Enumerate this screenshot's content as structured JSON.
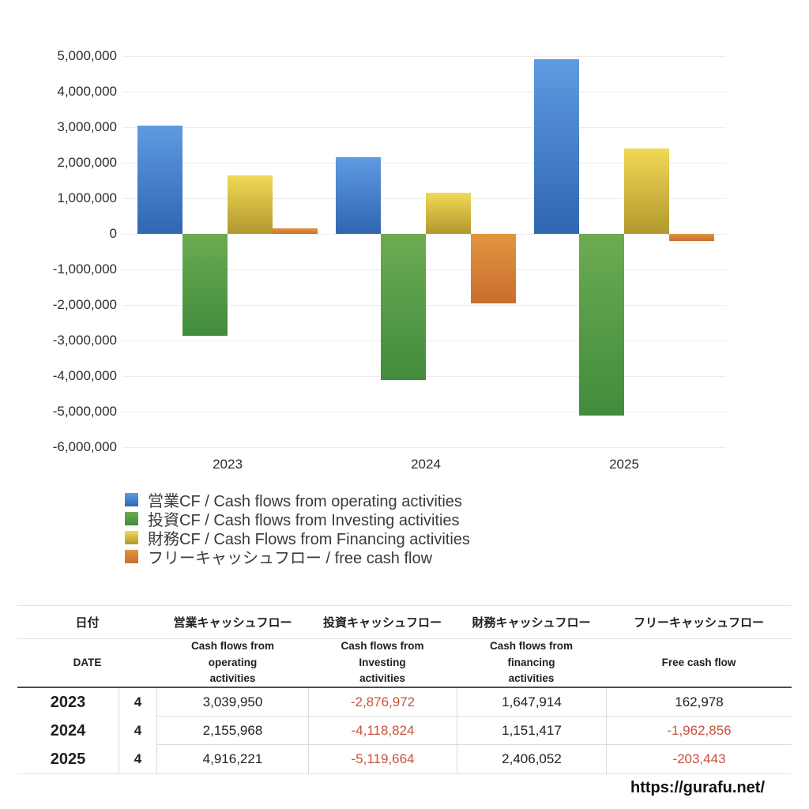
{
  "chart_data": {
    "type": "bar",
    "categories": [
      "2023",
      "2024",
      "2025"
    ],
    "series": [
      {
        "name": "営業CF / Cash flows from operating activities",
        "values": [
          3039950,
          2155968,
          4916221
        ],
        "color_top": "#5f9ae2",
        "color_bottom": "#3066b2"
      },
      {
        "name": "投資CF / Cash flows from Investing activities",
        "values": [
          -2876972,
          -4118824,
          -5119664
        ],
        "color_top": "#6cab52",
        "color_bottom": "#418c3c"
      },
      {
        "name": "財務CF / Cash Flows from Financing activities",
        "values": [
          1647914,
          1151417,
          2406052
        ],
        "color_top": "#f0d955",
        "color_bottom": "#b2982f"
      },
      {
        "name": "フリーキャッシュフロー / free cash flow",
        "values": [
          162978,
          -1962856,
          -203443
        ],
        "color_top": "#e2953f",
        "color_bottom": "#c96e2f"
      }
    ],
    "title": "",
    "xlabel": "",
    "ylabel": "",
    "ylim": [
      -6000000,
      5000000
    ],
    "ytick_step": 1000000,
    "ytick_labels": [
      "5,000,000",
      "4,000,000",
      "3,000,000",
      "2,000,000",
      "1,000,000",
      "0",
      "-1,000,000",
      "-2,000,000",
      "-3,000,000",
      "-4,000,000",
      "-5,000,000",
      "-6,000,000"
    ],
    "grid": true,
    "legend_position": "bottom-left"
  },
  "table": {
    "headers_ja": [
      "日付",
      "営業キャッシュフロー",
      "投資キャッシュフロー",
      "財務キャッシュフロー",
      "フリーキャッシュフロー"
    ],
    "headers_en": [
      "DATE",
      "Cash flows from operating activities",
      "Cash flows from Investing activities",
      "Cash flows from financing activities",
      "Free cash flow"
    ],
    "rows": [
      {
        "year": "2023",
        "month": "4",
        "values": [
          "3,039,950",
          "-2,876,972",
          "1,647,914",
          "162,978"
        ]
      },
      {
        "year": "2024",
        "month": "4",
        "values": [
          "2,155,968",
          "-4,118,824",
          "1,151,417",
          "-1,962,856"
        ]
      },
      {
        "year": "2025",
        "month": "4",
        "values": [
          "4,916,221",
          "-5,119,664",
          "2,406,052",
          "-203,443"
        ]
      }
    ],
    "negative_color": "#c9513e"
  },
  "footer": {
    "url": "https://gurafu.net/"
  }
}
